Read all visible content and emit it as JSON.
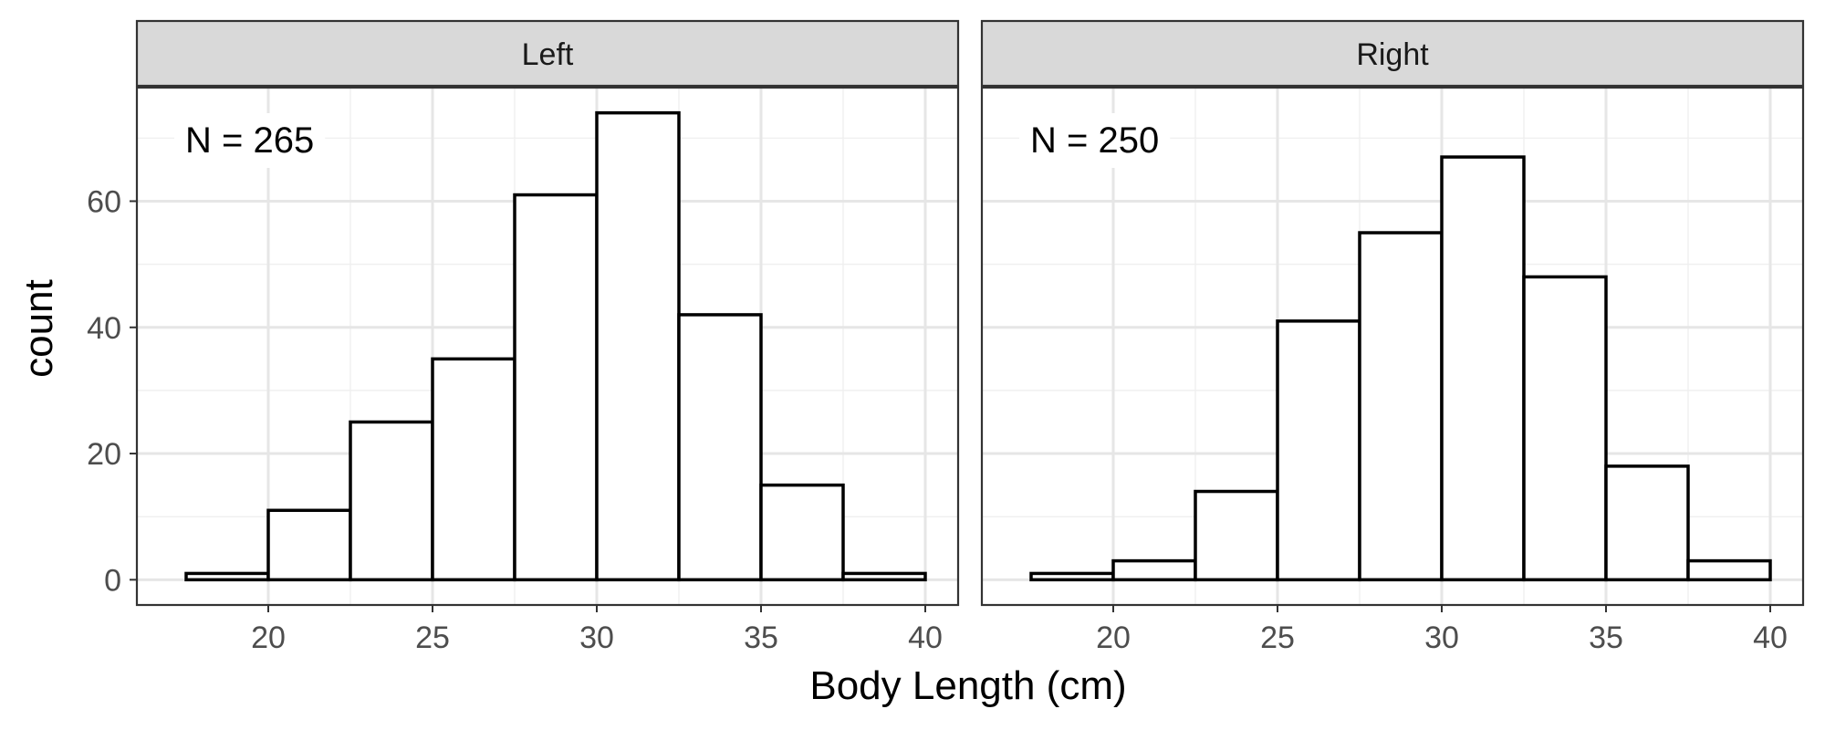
{
  "chart_data": {
    "type": "bar",
    "subtype": "faceted-histogram",
    "xlabel": "Body Length (cm)",
    "ylabel": "count",
    "xlim": [
      16,
      41
    ],
    "ylim": [
      -4,
      78
    ],
    "x_ticks": [
      "20",
      "25",
      "30",
      "35",
      "40"
    ],
    "y_ticks": [
      "0",
      "20",
      "40",
      "60"
    ],
    "grid": true,
    "bin_width": 2.5,
    "bins": [
      17.5,
      20,
      22.5,
      25,
      27.5,
      30,
      32.5,
      35,
      37.5,
      40
    ],
    "facets": [
      {
        "strip": "Left",
        "annotation": "N = 265",
        "values": [
          1,
          11,
          25,
          35,
          61,
          74,
          42,
          15,
          1
        ]
      },
      {
        "strip": "Right",
        "annotation": "N = 250",
        "values": [
          1,
          3,
          14,
          41,
          55,
          67,
          48,
          18,
          3
        ]
      }
    ]
  }
}
